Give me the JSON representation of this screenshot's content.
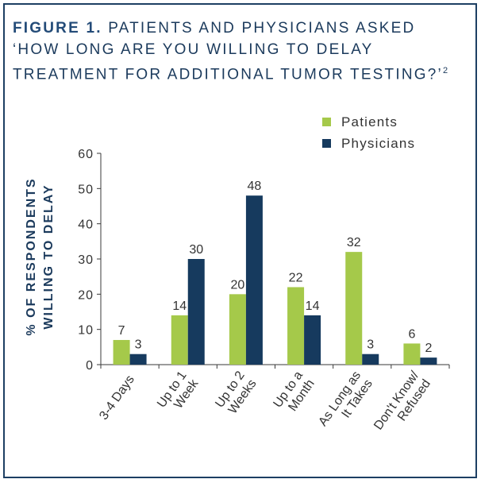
{
  "figure": {
    "label": "FIGURE 1.",
    "title_line1": "PATIENTS AND PHYSICIANS ASKED",
    "title_line2": "‘HOW LONG ARE YOU WILLING TO DELAY",
    "title_line3": "TREATMENT FOR ADDITIONAL TUMOR TESTING?’",
    "superscript": "2"
  },
  "chart_data": {
    "type": "bar",
    "title": "PATIENTS AND PHYSICIANS ASKED ‘HOW LONG ARE YOU WILLING TO DELAY TREATMENT FOR ADDITIONAL TUMOR TESTING?’",
    "ylabel_line1": "% OF RESPONDENTS",
    "ylabel_line2": "WILLING TO DELAY",
    "xlabel": "",
    "ylim": [
      0,
      60
    ],
    "yticks": [
      0,
      10,
      20,
      30,
      40,
      50,
      60
    ],
    "categories": [
      [
        "3-4 Days"
      ],
      [
        "Up to 1",
        "Week"
      ],
      [
        "Up to 2",
        "Weeks"
      ],
      [
        "Up to a",
        "Month"
      ],
      [
        "As Long as",
        "It Takes"
      ],
      [
        "Don't Know/",
        "Refused"
      ]
    ],
    "series": [
      {
        "name": "Patients",
        "color": "#a5c94a",
        "values": [
          7,
          14,
          20,
          22,
          32,
          6
        ]
      },
      {
        "name": "Physicians",
        "color": "#163a5e",
        "values": [
          3,
          30,
          48,
          14,
          3,
          2
        ]
      }
    ],
    "legend_position": "top-right"
  }
}
